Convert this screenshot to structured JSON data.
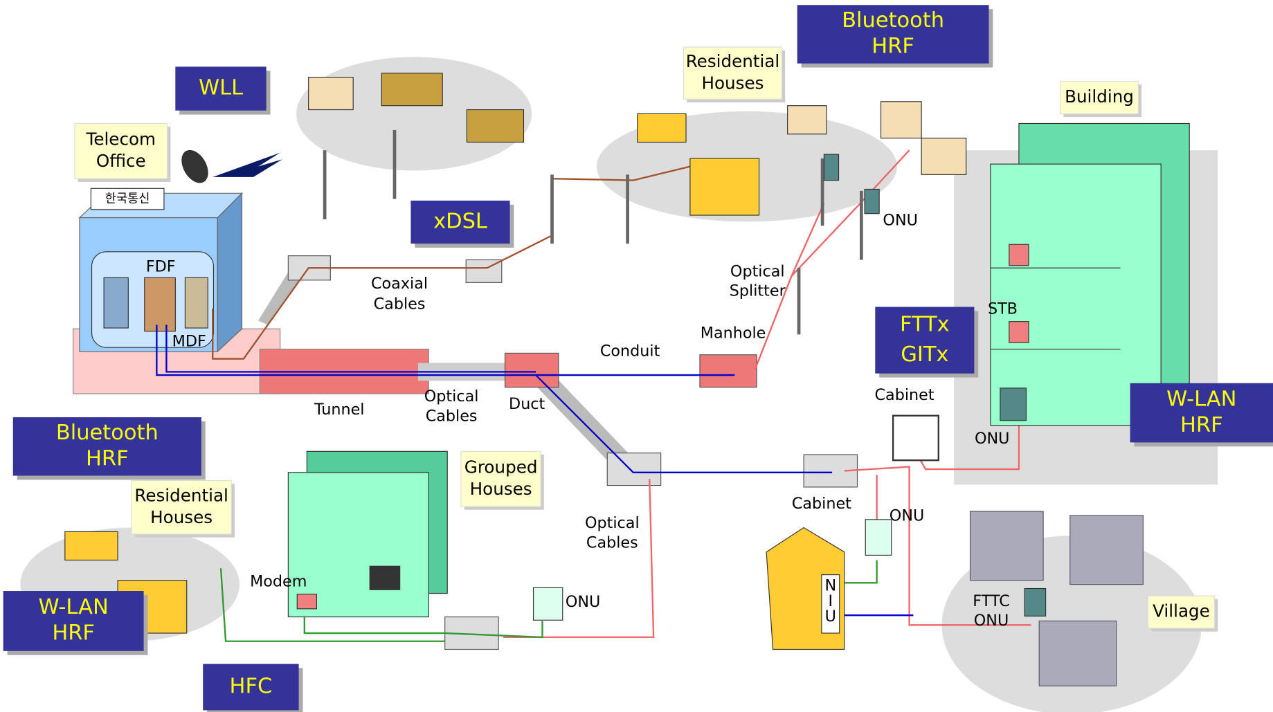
{
  "logo": "한국통신",
  "boxes": [
    {
      "lines": [
        "WLL"
      ]
    },
    {
      "lines": [
        "xDSL"
      ]
    },
    {
      "lines": [
        "Bluetooth",
        "HRF"
      ]
    },
    {
      "lines": [
        "FTTx",
        "GITx"
      ]
    },
    {
      "lines": [
        "Bluetooth",
        "HRF"
      ]
    },
    {
      "lines": [
        "W-LAN",
        "HRF"
      ]
    },
    {
      "lines": [
        "W-LAN",
        "HRF"
      ]
    },
    {
      "lines": [
        "HFC"
      ]
    }
  ],
  "notes": [
    {
      "lines": [
        "Telecom",
        "Office"
      ]
    },
    {
      "lines": [
        "Residential",
        "Houses"
      ]
    },
    {
      "lines": [
        "Building"
      ]
    },
    {
      "lines": [
        "Grouped",
        "Houses"
      ]
    },
    {
      "lines": [
        "Residential",
        "Houses"
      ]
    },
    {
      "lines": [
        "Village"
      ]
    }
  ],
  "labels": [
    {
      "lines": [
        "FDF"
      ]
    },
    {
      "lines": [
        "MDF"
      ]
    },
    {
      "lines": [
        "Coaxial",
        "Cables"
      ]
    },
    {
      "lines": [
        "Tunnel"
      ]
    },
    {
      "lines": [
        "Optical",
        "Cables"
      ]
    },
    {
      "lines": [
        "Duct"
      ]
    },
    {
      "lines": [
        "Conduit"
      ]
    },
    {
      "lines": [
        "Manhole"
      ]
    },
    {
      "lines": [
        "Optical",
        "Splitter"
      ]
    },
    {
      "lines": [
        "ONU"
      ]
    },
    {
      "lines": [
        "STB"
      ]
    },
    {
      "lines": [
        "Cabinet"
      ]
    },
    {
      "lines": [
        "ONU"
      ]
    },
    {
      "lines": [
        "Cabinet"
      ]
    },
    {
      "lines": [
        "ONU"
      ]
    },
    {
      "lines": [
        "Optical",
        "Cables"
      ]
    },
    {
      "lines": [
        "Modem"
      ]
    },
    {
      "lines": [
        "ONU"
      ]
    },
    {
      "lines": [
        "FTTC",
        "ONU"
      ]
    },
    {
      "lines": [
        "N",
        "I",
        "U"
      ]
    }
  ]
}
